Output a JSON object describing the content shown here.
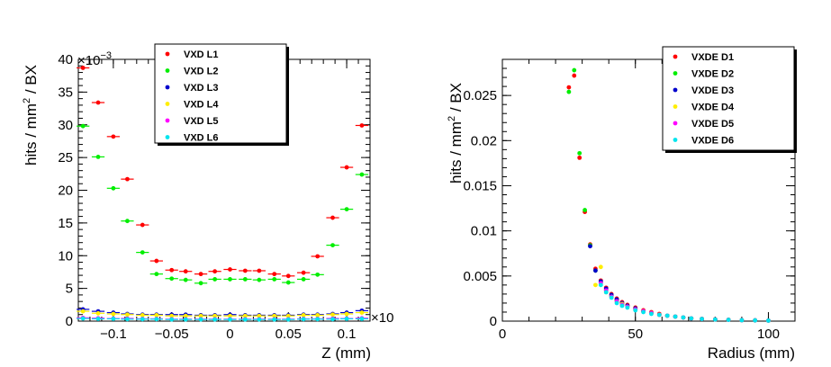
{
  "chart_data": [
    {
      "type": "scatter",
      "title": "",
      "xlabel": "Z (mm)",
      "ylabel_main": "hits / mm",
      "ylabel_sup": "2",
      "ylabel_tail": " / BX",
      "xlim": [
        -0.13,
        0.12
      ],
      "ylim": [
        0,
        40
      ],
      "x_ticks": [
        -0.1,
        -0.05,
        0,
        0.05,
        0.1
      ],
      "x_tick_labels": [
        "−0.1",
        "−0.05",
        "0",
        "0.05",
        "0.1"
      ],
      "y_ticks": [
        0,
        5,
        10,
        15,
        20,
        25,
        30,
        35,
        40
      ],
      "y_tick_labels": [
        "0",
        "5",
        "10",
        "15",
        "20",
        "25",
        "30",
        "35",
        "40"
      ],
      "y_multiplier": "×10",
      "y_multiplier_exp": "−3",
      "x_multiplier": "×10",
      "legend_position": "top-right",
      "series": [
        {
          "name": "VXD L1",
          "color": "#ff0000",
          "x": [
            -0.126,
            -0.113,
            -0.1,
            -0.088,
            -0.075,
            -0.063,
            -0.05,
            -0.038,
            -0.025,
            -0.013,
            0,
            0.013,
            0.025,
            0.038,
            0.05,
            0.063,
            0.075,
            0.088,
            0.1,
            0.113
          ],
          "y": [
            38.7,
            33.4,
            28.2,
            21.7,
            14.7,
            9.2,
            7.8,
            7.6,
            7.2,
            7.6,
            7.9,
            7.7,
            7.7,
            7.2,
            6.9,
            7.4,
            9.9,
            15.8,
            23.5,
            29.9
          ]
        },
        {
          "name": "VXD L2",
          "color": "#00ee00",
          "x": [
            -0.126,
            -0.113,
            -0.1,
            -0.088,
            -0.075,
            -0.063,
            -0.05,
            -0.038,
            -0.025,
            -0.013,
            0,
            0.013,
            0.025,
            0.038,
            0.05,
            0.063,
            0.075,
            0.088,
            0.1,
            0.113
          ],
          "y": [
            29.8,
            25.1,
            20.3,
            15.3,
            10.5,
            7.2,
            6.5,
            6.3,
            5.8,
            6.4,
            6.4,
            6.4,
            6.3,
            6.4,
            5.9,
            6.4,
            7.1,
            11.6,
            17.1,
            22.4
          ]
        },
        {
          "name": "VXD L3",
          "color": "#0000cc",
          "x": [
            -0.126,
            -0.113,
            -0.1,
            -0.088,
            -0.075,
            -0.063,
            -0.05,
            -0.038,
            -0.025,
            -0.013,
            0,
            0.013,
            0.025,
            0.038,
            0.05,
            0.063,
            0.075,
            0.088,
            0.1,
            0.113
          ],
          "y": [
            1.8,
            1.5,
            1.3,
            1.1,
            1.0,
            1.0,
            1.0,
            1.0,
            0.9,
            0.9,
            1.0,
            0.9,
            0.9,
            0.9,
            0.9,
            1.0,
            1.0,
            1.1,
            1.3,
            1.6
          ]
        },
        {
          "name": "VXD L4",
          "color": "#ffee00",
          "x": [
            -0.126,
            -0.113,
            -0.1,
            -0.088,
            -0.075,
            -0.063,
            -0.05,
            -0.038,
            -0.025,
            -0.013,
            0,
            0.013,
            0.025,
            0.038,
            0.05,
            0.063,
            0.075,
            0.088,
            0.1,
            0.113
          ],
          "y": [
            1.5,
            1.2,
            1.1,
            1.0,
            0.9,
            0.9,
            0.8,
            0.8,
            0.8,
            0.8,
            0.8,
            0.8,
            0.8,
            0.8,
            0.8,
            0.9,
            0.9,
            1.0,
            1.1,
            1.3
          ]
        },
        {
          "name": "VXD L5",
          "color": "#ff00ff",
          "x": [
            -0.126,
            -0.113,
            -0.1,
            -0.088,
            -0.075,
            -0.063,
            -0.05,
            -0.038,
            -0.025,
            -0.013,
            0,
            0.013,
            0.025,
            0.038,
            0.05,
            0.063,
            0.075,
            0.088,
            0.1,
            0.113
          ],
          "y": [
            0.5,
            0.45,
            0.4,
            0.4,
            0.35,
            0.35,
            0.3,
            0.3,
            0.3,
            0.3,
            0.3,
            0.3,
            0.3,
            0.3,
            0.3,
            0.35,
            0.35,
            0.4,
            0.4,
            0.45
          ]
        },
        {
          "name": "VXD L6",
          "color": "#00e5ee",
          "x": [
            -0.126,
            -0.113,
            -0.1,
            -0.088,
            -0.075,
            -0.063,
            -0.05,
            -0.038,
            -0.025,
            -0.013,
            0,
            0.013,
            0.025,
            0.038,
            0.05,
            0.063,
            0.075,
            0.088,
            0.1,
            0.113
          ],
          "y": [
            0.4,
            0.35,
            0.35,
            0.3,
            0.3,
            0.3,
            0.25,
            0.25,
            0.25,
            0.25,
            0.25,
            0.25,
            0.25,
            0.25,
            0.25,
            0.3,
            0.3,
            0.3,
            0.35,
            0.35
          ]
        }
      ]
    },
    {
      "type": "scatter",
      "title": "",
      "xlabel": "Radius (mm)",
      "ylabel_main": "hits / mm",
      "ylabel_sup": "2",
      "ylabel_tail": " / BX",
      "xlim": [
        0,
        110
      ],
      "ylim": [
        0,
        0.029
      ],
      "x_ticks": [
        0,
        50,
        100
      ],
      "x_tick_labels": [
        "0",
        "50",
        "100"
      ],
      "y_ticks": [
        0,
        0.005,
        0.01,
        0.015,
        0.02,
        0.025
      ],
      "y_tick_labels": [
        "0",
        "0.005",
        "0.01",
        "0.015",
        "0.02",
        "0.025"
      ],
      "legend_position": "top-right",
      "series": [
        {
          "name": "VXDE D1",
          "color": "#ff0000",
          "x": [
            25,
            27,
            29,
            31,
            33,
            35,
            37,
            39,
            41,
            43,
            45,
            47,
            50,
            53,
            56,
            59,
            62,
            65,
            68,
            71,
            75,
            80,
            85,
            90,
            95,
            100
          ],
          "y": [
            0.0259,
            0.0272,
            0.0181,
            0.0121,
            0.0085,
            0.0058,
            0.0045,
            0.0037,
            0.003,
            0.0025,
            0.0021,
            0.0018,
            0.0015,
            0.0012,
            0.001,
            0.0008,
            0.0006,
            0.0005,
            0.0004,
            0.0003,
            0.00025,
            0.0002,
            0.00015,
            0.0001,
            8e-05,
            6e-05
          ]
        },
        {
          "name": "VXDE D2",
          "color": "#00ee00",
          "x": [
            25,
            27,
            29,
            31,
            33,
            35,
            37,
            39,
            41,
            43,
            45,
            47,
            50,
            53,
            56,
            59,
            62,
            65,
            68,
            71,
            75,
            80,
            85,
            90,
            95,
            100
          ],
          "y": [
            0.0254,
            0.0278,
            0.0186,
            0.0123,
            0.0084,
            0.0056,
            0.0043,
            0.0034,
            0.0028,
            0.0023,
            0.0019,
            0.0017,
            0.0014,
            0.0011,
            0.0009,
            0.0007,
            0.0006,
            0.0005,
            0.0004,
            0.0003,
            0.00024,
            0.00018,
            0.00014,
            0.0001,
            8e-05,
            6e-05
          ]
        },
        {
          "name": "VXDE D3",
          "color": "#0000cc",
          "x": [
            33,
            35,
            37,
            39,
            41,
            43,
            45,
            47,
            50,
            53,
            56,
            59,
            62,
            65,
            68,
            71,
            75,
            80,
            85,
            90,
            95,
            100
          ],
          "y": [
            0.0083,
            0.0056,
            0.0044,
            0.0036,
            0.0029,
            0.0024,
            0.002,
            0.0017,
            0.0014,
            0.0011,
            0.0009,
            0.0007,
            0.0006,
            0.0005,
            0.0004,
            0.0003,
            0.00024,
            0.00018,
            0.00014,
            0.0001,
            8e-05,
            6e-05
          ]
        },
        {
          "name": "VXDE D4",
          "color": "#ffee00",
          "x": [
            35,
            37,
            39,
            41,
            43,
            45,
            47,
            50,
            53,
            56,
            59,
            62,
            65,
            68,
            71,
            75,
            80,
            85,
            90,
            95,
            100
          ],
          "y": [
            0.004,
            0.006,
            0.0032,
            0.0027,
            0.0022,
            0.0019,
            0.0016,
            0.0013,
            0.0011,
            0.0009,
            0.0007,
            0.0006,
            0.0005,
            0.0004,
            0.0003,
            0.00024,
            0.00018,
            0.00014,
            0.0001,
            8e-05,
            6e-05
          ]
        },
        {
          "name": "VXDE D5",
          "color": "#ff00ff",
          "x": [
            37,
            39,
            41,
            43,
            45,
            47,
            50,
            53,
            56,
            59,
            62,
            65,
            68,
            71,
            75,
            80,
            85,
            90,
            95,
            100
          ],
          "y": [
            0.0042,
            0.0034,
            0.0027,
            0.0022,
            0.0018,
            0.0016,
            0.0013,
            0.0011,
            0.0009,
            0.0007,
            0.0006,
            0.0005,
            0.0004,
            0.0003,
            0.00024,
            0.00018,
            0.00014,
            0.0001,
            8e-05,
            6e-05
          ]
        },
        {
          "name": "VXDE D6",
          "color": "#00e5ee",
          "x": [
            37,
            39,
            41,
            43,
            45,
            47,
            50,
            53,
            56,
            59,
            62,
            65,
            68,
            71,
            75,
            80,
            85,
            90,
            95,
            100
          ],
          "y": [
            0.004,
            0.0032,
            0.0026,
            0.002,
            0.0017,
            0.0015,
            0.0012,
            0.001,
            0.0008,
            0.0007,
            0.0006,
            0.0005,
            0.0004,
            0.0003,
            0.00024,
            0.00018,
            0.00014,
            0.0001,
            8e-05,
            6e-05
          ]
        }
      ]
    }
  ]
}
